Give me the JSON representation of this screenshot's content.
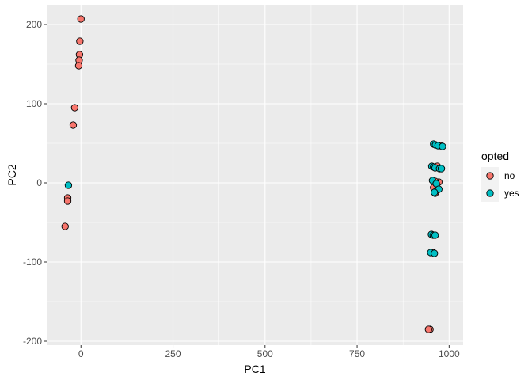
{
  "chart_data": {
    "type": "scatter",
    "title": "",
    "xlabel": "PC1",
    "ylabel": "PC2",
    "xlim": [
      -93,
      1038
    ],
    "ylim": [
      -205,
      225
    ],
    "x_ticks": [
      0,
      250,
      500,
      750,
      1000
    ],
    "y_ticks": [
      -200,
      -100,
      0,
      100,
      200
    ],
    "grid": true,
    "legend": {
      "title": "opted",
      "position": "right"
    },
    "series": [
      {
        "name": "no",
        "color": "#F8766D",
        "points": [
          {
            "x": 0,
            "y": 207
          },
          {
            "x": -3,
            "y": 179
          },
          {
            "x": -4,
            "y": 162
          },
          {
            "x": -5,
            "y": 155
          },
          {
            "x": -6,
            "y": 148
          },
          {
            "x": -17,
            "y": 95
          },
          {
            "x": -21,
            "y": 73
          },
          {
            "x": -36,
            "y": -19
          },
          {
            "x": -36,
            "y": -23
          },
          {
            "x": -43,
            "y": -55
          },
          {
            "x": 976,
            "y": 47
          },
          {
            "x": 968,
            "y": 21
          },
          {
            "x": 972,
            "y": 1
          },
          {
            "x": 962,
            "y": 2
          },
          {
            "x": 958,
            "y": -6
          },
          {
            "x": 967,
            "y": -9
          },
          {
            "x": 962,
            "y": -13
          },
          {
            "x": 956,
            "y": -88
          },
          {
            "x": 948,
            "y": -185
          },
          {
            "x": 944,
            "y": -185
          }
        ]
      },
      {
        "name": "yes",
        "color": "#00BFC4",
        "points": [
          {
            "x": -34,
            "y": -3
          },
          {
            "x": 958,
            "y": 49
          },
          {
            "x": 963,
            "y": 48
          },
          {
            "x": 970,
            "y": 47
          },
          {
            "x": 982,
            "y": 46
          },
          {
            "x": 953,
            "y": 21
          },
          {
            "x": 958,
            "y": 20
          },
          {
            "x": 962,
            "y": 19
          },
          {
            "x": 974,
            "y": 18
          },
          {
            "x": 979,
            "y": 18
          },
          {
            "x": 955,
            "y": 3
          },
          {
            "x": 965,
            "y": -1
          },
          {
            "x": 972,
            "y": -8
          },
          {
            "x": 960,
            "y": -12
          },
          {
            "x": 952,
            "y": -65
          },
          {
            "x": 957,
            "y": -66
          },
          {
            "x": 962,
            "y": -66
          },
          {
            "x": 950,
            "y": -88
          },
          {
            "x": 960,
            "y": -89
          }
        ]
      }
    ]
  }
}
